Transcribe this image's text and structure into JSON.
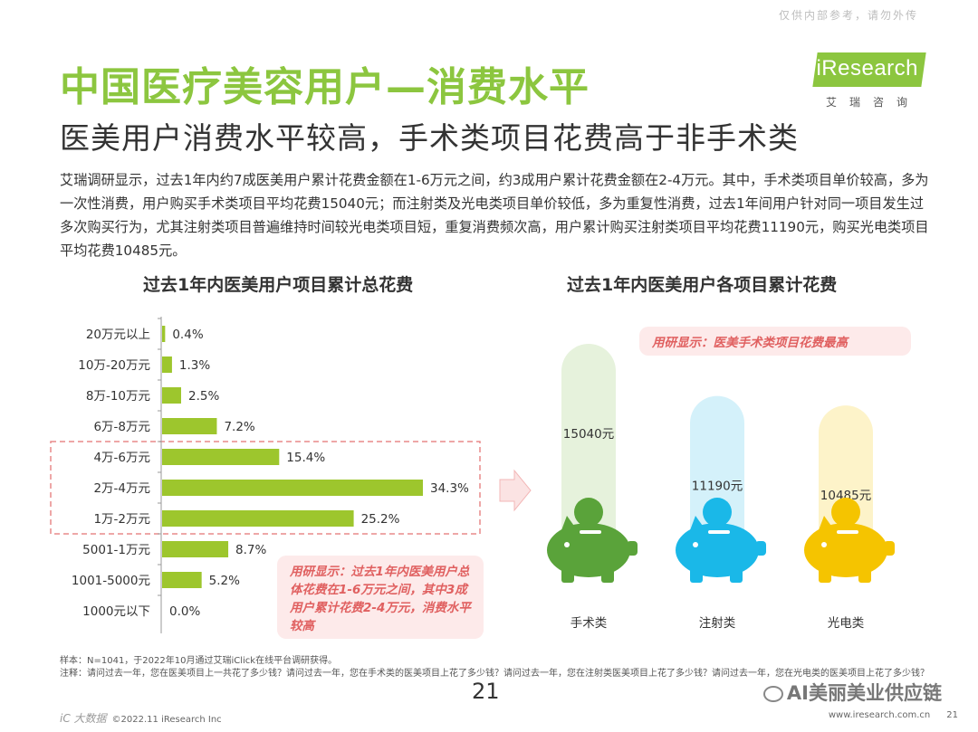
{
  "header": {
    "watermark": "仅供内部参考，请勿外传",
    "title": "中国医疗美容用户—消费水平",
    "subtitle": "医美用户消费水平较高，手术类项目花费高于非手术类",
    "logo_text": "iResearch",
    "logo_cn": "艾瑞咨询"
  },
  "body_text": "艾瑞调研显示，过去1年内约7成医美用户累计花费金额在1-6万元之间，约3成用户累计花费金额在2-4万元。其中，手术类项目单价较高，多为一次性消费，用户购买手术类项目平均花费15040元；而注射类及光电类项目单价较低，多为重复性消费，过去1年间用户针对同一项目发生过多次购买行为，尤其注射类项目普遍维持时间较光电类项目短，重复消费频次高，用户累计购买注射类项目平均花费11190元，购买光电类项目平均花费10485元。",
  "chart_data": [
    {
      "type": "bar",
      "orientation": "horizontal",
      "title": "过去1年内医美用户项目累计总花费",
      "categories": [
        "20万元以上",
        "10万-20万元",
        "8万-10万元",
        "6万-8万元",
        "4万-6万元",
        "2万-4万元",
        "1万-2万元",
        "5001-1万元",
        "1001-5000元",
        "1000元以下"
      ],
      "values": [
        0.4,
        1.3,
        2.5,
        7.2,
        15.4,
        34.3,
        25.2,
        8.7,
        5.2,
        0.0
      ],
      "value_labels": [
        "0.4%",
        "1.3%",
        "2.5%",
        "7.2%",
        "15.4%",
        "34.3%",
        "25.2%",
        "8.7%",
        "5.2%",
        "0.0%"
      ],
      "xlim": [
        0,
        40
      ],
      "highlighted": [
        "4万-6万元",
        "2万-4万元",
        "1万-2万元"
      ],
      "color": "#9dc62d",
      "callout": "用研显示：过去1年内医美用户总体花费在1-6万元之间，其中3成用户累计花费2-4万元，消费水平较高"
    },
    {
      "type": "bar",
      "title": "过去1年内医美用户各项目累计花费",
      "categories": [
        "手术类",
        "注射类",
        "光电类"
      ],
      "values": [
        15040,
        11190,
        10485
      ],
      "value_labels": [
        "15040元",
        "11190元",
        "10485元"
      ],
      "colors": [
        "#5aa33a",
        "#1ab8e8",
        "#f5c400"
      ],
      "light_colors": [
        "#e6f2dc",
        "#d4f1fa",
        "#fdf3c9"
      ],
      "callout": "用研显示：医美手术类项目花费最高"
    }
  ],
  "notes": {
    "sample": "样本：N=1041，于2022年10月通过艾瑞iClick在线平台调研获得。",
    "note": "注释：请问过去一年，您在医美项目上一共花了多少钱？请问过去一年，您在手术类的医美项目上花了多少钱？请问过去一年，您在注射类医美项目上花了多少钱？请问过去一年，您在光电类的医美项目上花了多少钱？"
  },
  "footer": {
    "page_number_big": "21",
    "copyright": "©2022.11 iResearch Inc",
    "overlay_logo": "iC 大数据",
    "wechat": "AI美丽美业供应链",
    "url": "www.iresearch.com.cn",
    "page": "21"
  }
}
